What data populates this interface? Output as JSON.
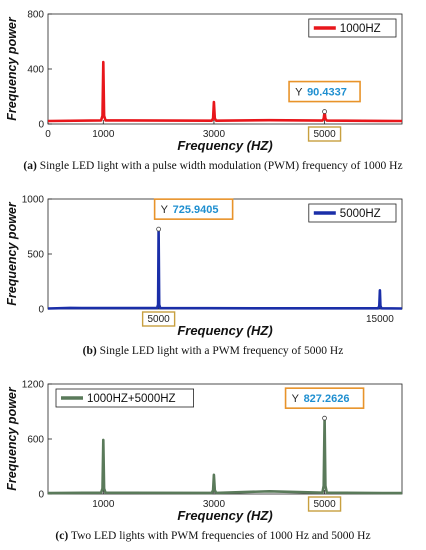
{
  "chart_data": [
    {
      "type": "line",
      "series": [
        {
          "name": "1000HZ",
          "color": "#e8161b",
          "x": [
            0,
            960,
            985,
            1000,
            1015,
            1040,
            2960,
            2985,
            3000,
            3015,
            3040,
            4000,
            4960,
            4985,
            5000,
            5015,
            5040,
            6400
          ],
          "y": [
            22,
            26,
            60,
            450,
            60,
            26,
            24,
            40,
            160,
            40,
            24,
            28,
            25,
            38,
            90.4337,
            38,
            25,
            22
          ]
        }
      ],
      "xticks": [
        "0",
        "1000",
        "3000",
        "5000"
      ],
      "yticks": [
        "0",
        "400",
        "800"
      ],
      "xlabel": "Frequency (HZ)",
      "ylabel": "Frequency power",
      "ylim": [
        0,
        800
      ],
      "xlim": [
        0,
        6400
      ],
      "legend_position": "top-right",
      "datatip": {
        "label": "Y",
        "value": "90.4337",
        "x": 5000,
        "y": 90.4337
      },
      "highlighted_tick": "5000"
    },
    {
      "type": "line",
      "series": [
        {
          "name": "5000HZ",
          "color": "#1a2ea8",
          "x": [
            0,
            1000,
            1500,
            4930,
            4975,
            5000,
            5025,
            5070,
            10000,
            14930,
            14975,
            15000,
            15025,
            15070,
            16000
          ],
          "y": [
            5,
            10,
            8,
            8,
            40,
            725.9405,
            40,
            8,
            6,
            6,
            30,
            170,
            30,
            6,
            5
          ]
        }
      ],
      "xticks": [
        "5000",
        "15000"
      ],
      "yticks": [
        "0",
        "500",
        "1000"
      ],
      "xlabel": "Frequency (HZ)",
      "ylabel": "Frequency power",
      "ylim": [
        0,
        1000
      ],
      "xlim": [
        0,
        16000
      ],
      "legend_position": "top-right",
      "datatip": {
        "label": "Y",
        "value": "725.9405",
        "x": 5000,
        "y": 725.9405
      },
      "highlighted_tick": "5000"
    },
    {
      "type": "line",
      "series": [
        {
          "name": "1000HZ+5000HZ",
          "color": "#5a7a5a",
          "x": [
            0,
            960,
            985,
            1000,
            1015,
            1040,
            2960,
            2985,
            3000,
            3015,
            3040,
            4000,
            4960,
            4985,
            5000,
            5015,
            5040,
            6400
          ],
          "y": [
            10,
            14,
            60,
            590,
            60,
            14,
            12,
            40,
            210,
            40,
            12,
            30,
            14,
            90,
            827.2626,
            90,
            14,
            10
          ]
        }
      ],
      "xticks": [
        "1000",
        "3000",
        "5000"
      ],
      "yticks": [
        "0",
        "600",
        "1200"
      ],
      "xlabel": "Frequency (HZ)",
      "ylabel": "Frequency power",
      "ylim": [
        0,
        1200
      ],
      "xlim": [
        0,
        6400
      ],
      "legend_position": "top-left",
      "datatip": {
        "label": "Y",
        "value": "827.2626",
        "x": 5000,
        "y": 827.2626
      },
      "highlighted_tick": "5000"
    }
  ],
  "captions": [
    {
      "tag": "(a)",
      "text": "Single LED light with a pulse width modulation (PWM) frequency of 1000 Hz"
    },
    {
      "tag": "(b)",
      "text": "Single LED light with a PWM frequency of 5000 Hz"
    },
    {
      "tag": "(c)",
      "text": "Two LED lights with PWM frequencies of 1000 Hz and 5000 Hz"
    }
  ],
  "colors": {
    "tip_border": "#e8932a",
    "tip_value": "#1f8fd0",
    "tick_highlight": "#c8a040"
  }
}
